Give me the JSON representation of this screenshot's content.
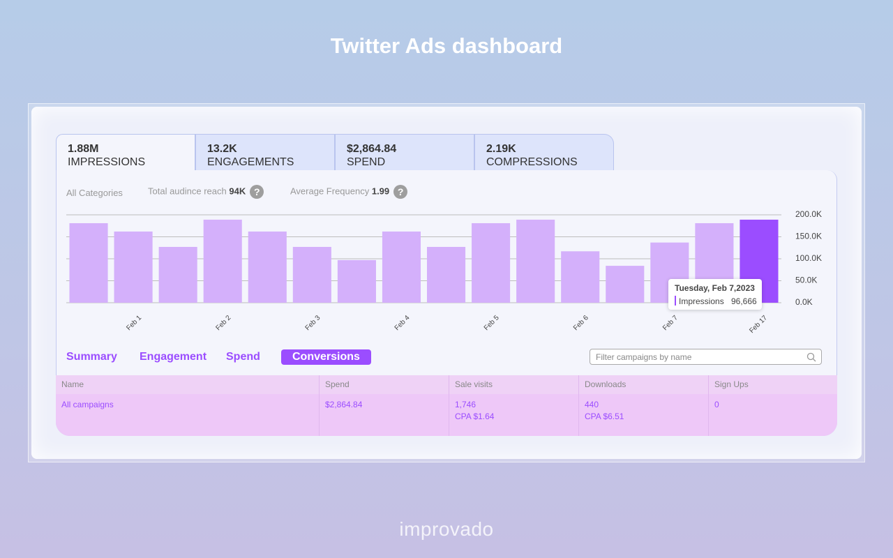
{
  "title": "Twitter Ads dashboard",
  "metric_tabs": [
    {
      "value": "1.88M",
      "label": "IMPRESSIONS"
    },
    {
      "value": "13.2K",
      "label": "ENGAGEMENTS"
    },
    {
      "value": "$2,864.84",
      "label": "SPEND"
    },
    {
      "value": "2.19K",
      "label": "COMPRESSIONS"
    }
  ],
  "stats": {
    "category": "All Categories",
    "reach_label": "Total audince reach",
    "reach_value": "94K",
    "frequency_label": "Average Frequency",
    "frequency_value": "1.99",
    "help_icon": "?"
  },
  "chart_data": {
    "type": "bar",
    "categories": [
      null,
      "Feb 1",
      null,
      "Feb 2",
      null,
      "Feb 3",
      null,
      "Feb 4",
      null,
      "Feb 5",
      null,
      "Feb 6",
      null,
      "Feb 7",
      null,
      "Feb 17"
    ],
    "values": [
      181000,
      162000,
      127000,
      189000,
      162000,
      127000,
      97000,
      162000,
      127000,
      181000,
      189000,
      117000,
      84000,
      137000,
      181000,
      189000
    ],
    "colors": [
      "#d4b0fb",
      "#d4b0fb",
      "#d4b0fb",
      "#d4b0fb",
      "#d4b0fb",
      "#d4b0fb",
      "#d4b0fb",
      "#d4b0fb",
      "#d4b0fb",
      "#d4b0fb",
      "#d4b0fb",
      "#d4b0fb",
      "#d4b0fb",
      "#d4b0fb",
      "#d4b0fb",
      "#9b4dff"
    ],
    "ylim": [
      0,
      200000
    ],
    "yticks": [
      {
        "value": 0,
        "label": "0.0K"
      },
      {
        "value": 50000,
        "label": "50.0K"
      },
      {
        "value": 100000,
        "label": "100.0K"
      },
      {
        "value": 150000,
        "label": "150.0K"
      },
      {
        "value": 200000,
        "label": "200.0K"
      }
    ],
    "grid": true
  },
  "tooltip": {
    "date": "Tuesday, Feb 7,2023",
    "series": "Impressions",
    "value": "96,666"
  },
  "nav_tabs": [
    "Summary",
    "Engagement",
    "Spend",
    "Conversions"
  ],
  "search_placeholder": "Filter campaigns by name",
  "table": {
    "columns": [
      "Name",
      "Spend",
      "Sale visits",
      "Downloads",
      "Sign Ups"
    ],
    "rows": [
      [
        [
          "All campaigns"
        ],
        [
          "$2,864.84"
        ],
        [
          "1,746",
          "CPA $1.64"
        ],
        [
          "440",
          "CPA $6.51"
        ],
        [
          "0"
        ]
      ]
    ]
  },
  "logo": "improvado"
}
